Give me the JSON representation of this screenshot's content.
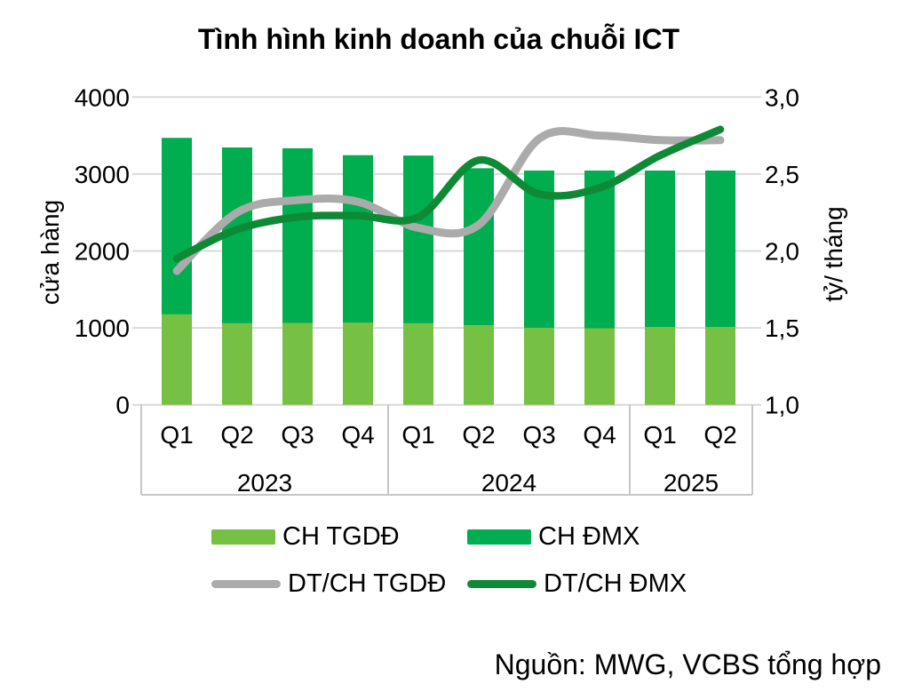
{
  "title": "Tình hình kinh doanh của chuỗi ICT",
  "source": "Nguồn: MWG, VCBS tổng hợp",
  "colors": {
    "bar_tgdd": "#76C043",
    "bar_dmx": "#00AD4F",
    "line_tgdd": "#ABABAB",
    "line_dmx": "#0E8A36",
    "grid": "#D9D9D9",
    "axis_box": "#C6C6C6",
    "text": "#000000"
  },
  "left_axis": {
    "label": "cửa hàng",
    "min": 0,
    "max": 4000,
    "ticks": [
      "0",
      "1000",
      "2000",
      "3000",
      "4000"
    ]
  },
  "right_axis": {
    "label": "tỷ/ tháng",
    "min": 1.0,
    "max": 3.0,
    "ticks": [
      "1,0",
      "1,5",
      "2,0",
      "2,5",
      "3,0"
    ]
  },
  "chart_data": {
    "type": "combo: stacked bar + smoothed line",
    "categories": [
      "Q1 2023",
      "Q2 2023",
      "Q3 2023",
      "Q4 2023",
      "Q1 2024",
      "Q2 2024",
      "Q3 2024",
      "Q4 2024",
      "Q1 2025",
      "Q2 2025"
    ],
    "quarter_labels": [
      "Q1",
      "Q2",
      "Q3",
      "Q4",
      "Q1",
      "Q2",
      "Q3",
      "Q4",
      "Q1",
      "Q2"
    ],
    "year_groups": [
      {
        "label": "2023",
        "span": 4
      },
      {
        "label": "2024",
        "span": 4
      },
      {
        "label": "2025",
        "span": 2
      }
    ],
    "series": [
      {
        "name": "CH TGDĐ",
        "type": "bar",
        "stack": "stores",
        "axis": "left",
        "values": [
          1175,
          1060,
          1065,
          1070,
          1060,
          1035,
          1000,
          995,
          1010,
          1010
        ]
      },
      {
        "name": "CH ĐMX",
        "type": "bar",
        "stack": "stores",
        "axis": "left",
        "values": [
          2295,
          2285,
          2270,
          2175,
          2180,
          2040,
          2045,
          2050,
          2035,
          2035
        ]
      },
      {
        "name": "DT/CH TGDĐ",
        "type": "line",
        "axis": "right",
        "values": [
          1.87,
          2.25,
          2.33,
          2.32,
          2.15,
          2.17,
          2.73,
          2.75,
          2.72,
          2.72
        ]
      },
      {
        "name": "DT/CH ĐMX",
        "type": "line",
        "axis": "right",
        "values": [
          1.95,
          2.14,
          2.22,
          2.23,
          2.22,
          2.59,
          2.37,
          2.41,
          2.62,
          2.79
        ]
      }
    ],
    "ylim_left": [
      0,
      4000
    ],
    "ylim_right": [
      1.0,
      3.0
    ],
    "grid": "horizontal",
    "legend_position": "bottom"
  }
}
